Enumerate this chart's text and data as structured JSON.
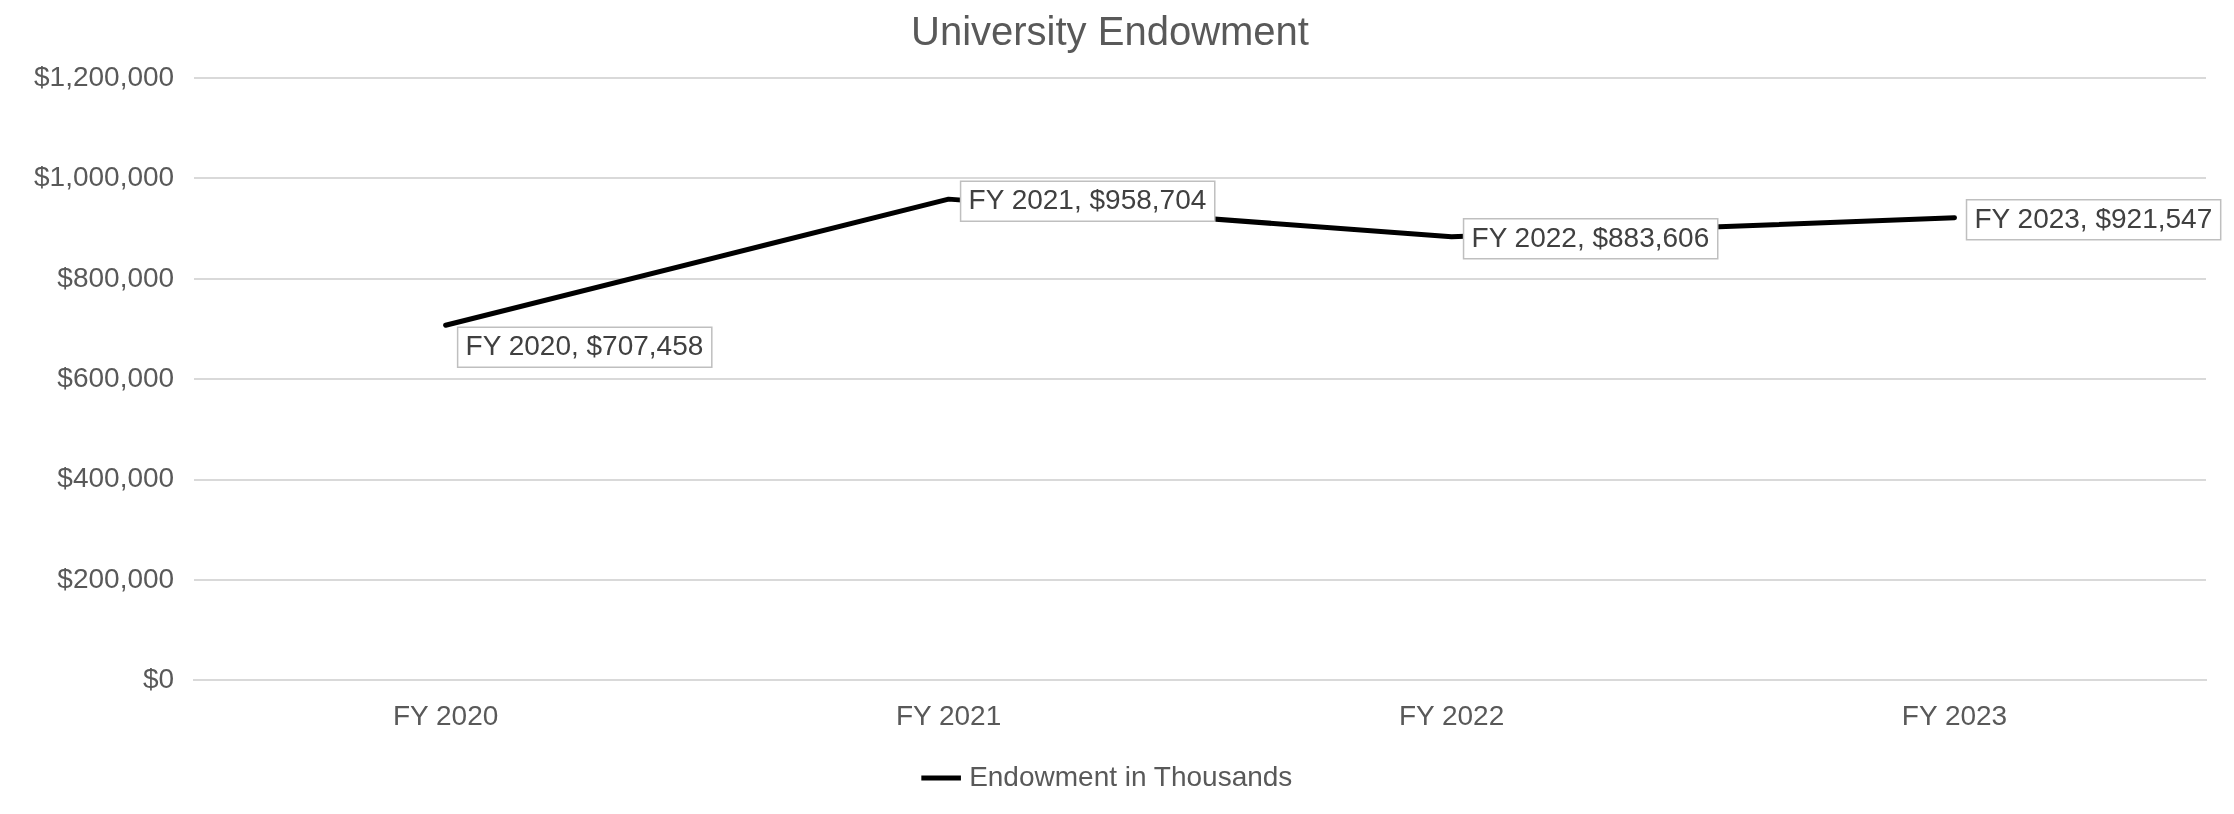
{
  "chart_data": {
    "type": "line",
    "title": "University Endowment",
    "categories": [
      "FY 2020",
      "FY 2021",
      "FY 2022",
      "FY 2023"
    ],
    "series": [
      {
        "name": "Endowment in Thousands",
        "color": "#000000",
        "values": [
          707458,
          958704,
          883606,
          921547
        ],
        "value_labels": [
          "FY 2020, $707,458",
          "FY 2021, $958,704",
          "FY 2022, $883,606",
          "FY 2023, $921,547"
        ]
      }
    ],
    "ylim": [
      0,
      1200000
    ],
    "yticks": [
      {
        "value": 0,
        "label": "$0"
      },
      {
        "value": 200000,
        "label": "$200,000"
      },
      {
        "value": 400000,
        "label": "$400,000"
      },
      {
        "value": 600000,
        "label": "$600,000"
      },
      {
        "value": 800000,
        "label": "$800,000"
      },
      {
        "value": 1000000,
        "label": "$1,000,000"
      },
      {
        "value": 1200000,
        "label": "$1,200,000"
      }
    ],
    "grid": "y",
    "legend": "bottom",
    "marker": "none",
    "line_style": "solid"
  }
}
